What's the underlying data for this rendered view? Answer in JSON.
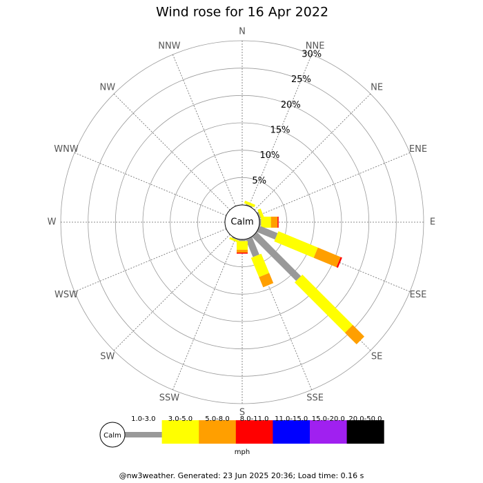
{
  "chart_data": {
    "type": "windrose",
    "title": "Wind rose for 16 Apr 2022",
    "directions": [
      "N",
      "NNE",
      "NE",
      "ENE",
      "E",
      "ESE",
      "SE",
      "SSE",
      "S",
      "SSW",
      "SW",
      "WSW",
      "W",
      "WNW",
      "NW",
      "NNW"
    ],
    "calm_label": "Calm",
    "rlim": [
      0,
      30
    ],
    "rticks": [
      {
        "value": 5,
        "label": "5%"
      },
      {
        "value": 10,
        "label": "10%"
      },
      {
        "value": 15,
        "label": "15%"
      },
      {
        "value": 20,
        "label": "20%"
      },
      {
        "value": 25,
        "label": "25%"
      },
      {
        "value": 30,
        "label": "30%"
      }
    ],
    "series": [
      {
        "name": "1.0-3.0",
        "color": "#999999",
        "values": [
          0,
          0.2,
          0,
          0.3,
          0.3,
          3.6,
          11.4,
          3.5,
          0.3,
          0.2,
          0,
          0,
          0,
          0,
          0,
          0
        ]
      },
      {
        "name": "3.0-5.0",
        "color": "#ffff00",
        "values": [
          0,
          0.5,
          0,
          0.6,
          1.8,
          7.8,
          13.0,
          3.8,
          1.6,
          0.4,
          0,
          0,
          0,
          0,
          0,
          0
        ]
      },
      {
        "name": "5.0-8.0",
        "color": "#ff9f00",
        "values": [
          0,
          0,
          0,
          0,
          1.2,
          4.5,
          3.0,
          2.0,
          0.5,
          0,
          0,
          0,
          0,
          0,
          0,
          0
        ]
      },
      {
        "name": "8.0-11.0",
        "color": "#ff0000",
        "values": [
          0,
          0,
          0,
          0,
          0.2,
          0.3,
          0,
          0,
          0.2,
          0,
          0,
          0,
          0,
          0,
          0,
          0
        ]
      },
      {
        "name": "11.0-15.0",
        "color": "#0000ff",
        "values": [
          0,
          0,
          0,
          0,
          0,
          0,
          0,
          0,
          0,
          0,
          0,
          0,
          0,
          0,
          0,
          0
        ]
      },
      {
        "name": "15.0-20.0",
        "color": "#a020f0",
        "values": [
          0,
          0,
          0,
          0,
          0,
          0,
          0,
          0,
          0,
          0,
          0,
          0,
          0,
          0,
          0,
          0
        ]
      },
      {
        "name": "20.0-50.0",
        "color": "#000000",
        "values": [
          0,
          0,
          0,
          0,
          0,
          0,
          0,
          0,
          0,
          0,
          0,
          0,
          0,
          0,
          0,
          0
        ]
      }
    ],
    "legend_unit": "mph",
    "footer": "@nw3weather. Generated: 23 Jun 2025 20:36; Load time: 0.16 s"
  }
}
